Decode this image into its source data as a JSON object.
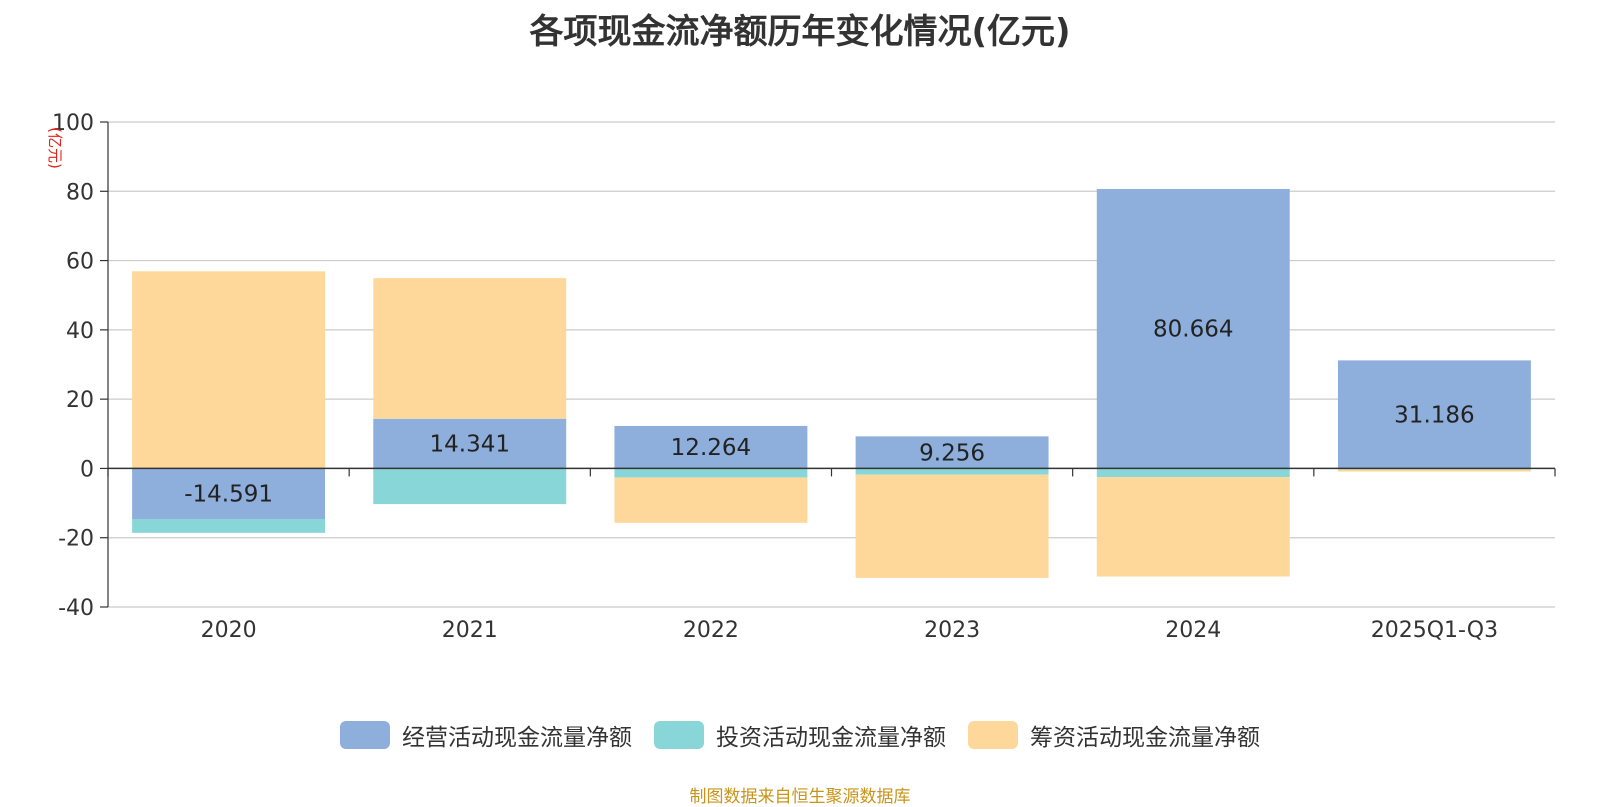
{
  "chart_data": {
    "type": "bar",
    "stacked": true,
    "title": "各项现金流净额历年变化情况(亿元)",
    "ylabel": "(亿元)",
    "xlabel": "",
    "categories": [
      "2020",
      "2021",
      "2022",
      "2023",
      "2024",
      "2025Q1-Q3"
    ],
    "ylim": [
      -40,
      100
    ],
    "yticks": [
      -40,
      -20,
      0,
      20,
      40,
      60,
      80,
      100
    ],
    "grid": true,
    "legend_position": "bottom",
    "series": [
      {
        "name": "经营活动现金流量净额",
        "color": "#8eaedb",
        "values": [
          -14.591,
          14.341,
          12.264,
          9.256,
          80.664,
          31.186
        ],
        "labels": [
          "-14.591",
          "14.341",
          "12.264",
          "9.256",
          "80.664",
          "31.186"
        ]
      },
      {
        "name": "投资活动现金流量净额",
        "color": "#88d6d8",
        "values": [
          -4.0,
          -10.3,
          -2.6,
          -1.8,
          -2.5,
          -0.3
        ]
      },
      {
        "name": "筹资活动现金流量净额",
        "color": "#fed89a",
        "values": [
          56.9,
          40.6,
          -13.1,
          -29.8,
          -28.7,
          -0.6
        ]
      }
    ]
  },
  "source": "制图数据来自恒生聚源数据库"
}
